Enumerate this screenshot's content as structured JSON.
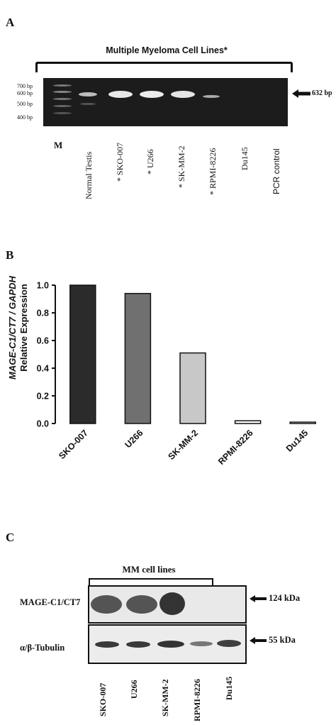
{
  "panel_a": {
    "letter": "A",
    "bracket_title": "Multiple Myeloma Cell Lines*",
    "ladder_labels": [
      "700 bp",
      "600 bp",
      "500 bp",
      "400 bp"
    ],
    "marker_label": "M",
    "band_label": "632 bp",
    "lanes": [
      "Normal Testis",
      "* SKO-007",
      "* U266",
      "* SK-MM-2",
      "* RPMI-8226",
      "Du145",
      "PCR control"
    ]
  },
  "panel_b": {
    "letter": "B",
    "chart_data": {
      "type": "bar",
      "categories": [
        "SKO-007",
        "U266",
        "SK-MM-2",
        "RPMI-8226",
        "Du145"
      ],
      "values": [
        1.0,
        0.94,
        0.51,
        0.02,
        0.01
      ],
      "ylabel_line1": "MAGE-C1/CT7 / GAPDH",
      "ylabel_line2": "Relative Expression",
      "ylim": [
        0,
        1.0
      ],
      "yticks": [
        "0.0",
        "0.2",
        "0.4",
        "0.6",
        "0.8",
        "1.0"
      ],
      "colors": [
        "#2b2b2b",
        "#707070",
        "#c8c8c8",
        "#ffffff",
        "#ffffff"
      ],
      "grid": false
    }
  },
  "panel_c": {
    "letter": "C",
    "bracket_title": "MM cell lines",
    "row1_label": "MAGE-C1/CT7",
    "row2_label": "α/β-Tubulin",
    "row1_size": "124 kDa",
    "row2_size": "55 kDa",
    "lanes": [
      "SKO-007",
      "U266",
      "SK-MM-2",
      "RPMI-8226",
      "Du145"
    ]
  }
}
